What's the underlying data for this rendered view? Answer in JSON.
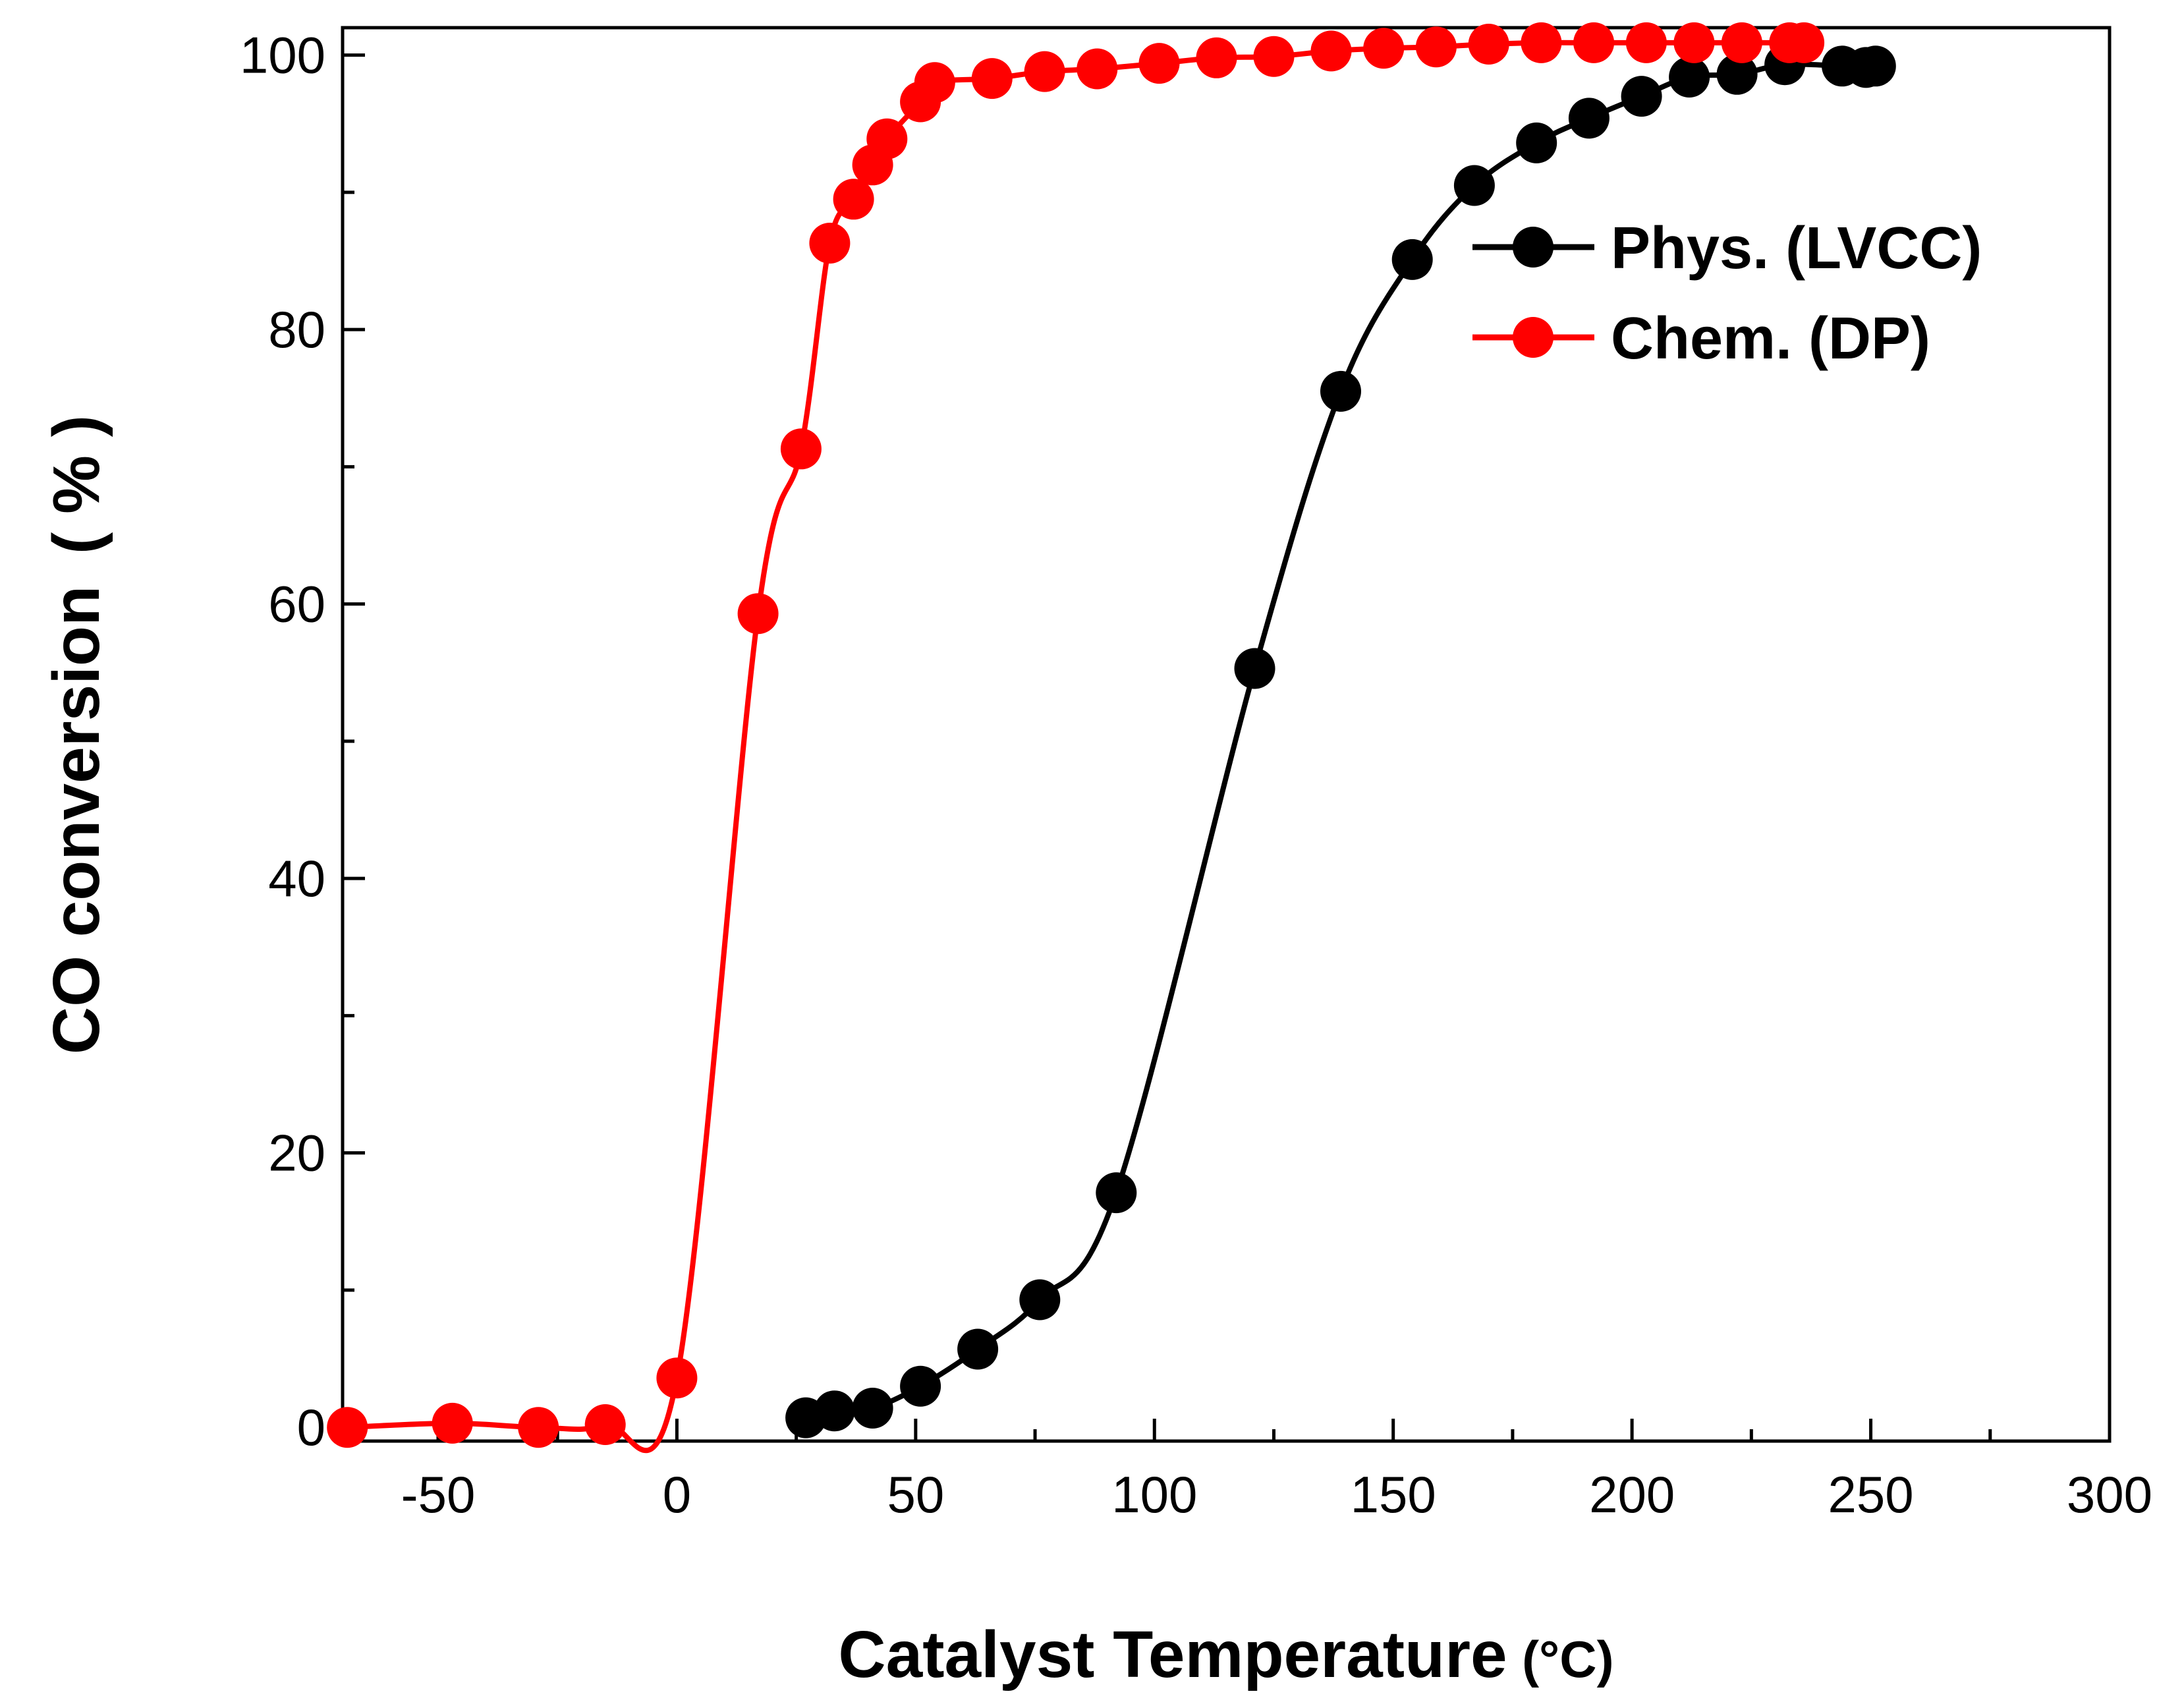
{
  "chart_data": {
    "type": "line",
    "title": "",
    "xlabel": "Catalyst Temperature",
    "xlabel_unit": "°C",
    "ylabel": "CO conversion",
    "ylabel_unit": "%",
    "xlim": [
      -70,
      300
    ],
    "ylim": [
      -1,
      102
    ],
    "xticks": [
      -50,
      0,
      50,
      100,
      150,
      200,
      250,
      300
    ],
    "yticks": [
      0,
      20,
      40,
      60,
      80,
      100
    ],
    "xtick_labels": [
      "-50",
      "0",
      "50",
      "100",
      "150",
      "200",
      "250",
      "300"
    ],
    "ytick_labels": [
      "0",
      "20",
      "40",
      "60",
      "80",
      "100"
    ],
    "grid": false,
    "legend_position": "top-right",
    "series": [
      {
        "name": "Phys. (LVCC)",
        "color": "#000000",
        "marker": "circle",
        "x": [
          27,
          33,
          41,
          51,
          63,
          76,
          92,
          121,
          139,
          154,
          167,
          180,
          191,
          202,
          212,
          222,
          232,
          244,
          249,
          251
        ],
        "y": [
          0.7,
          1.2,
          1.4,
          3.0,
          5.7,
          9.3,
          17.1,
          55.3,
          75.5,
          85.1,
          90.5,
          93.6,
          95.4,
          97.0,
          98.4,
          98.6,
          99.3,
          99.2,
          99.1,
          99.2
        ]
      },
      {
        "name": "Chem. (DP)",
        "color": "#ff0000",
        "marker": "circle",
        "x": [
          -69,
          -47,
          -29,
          -15,
          0,
          17,
          26,
          32,
          37,
          41,
          44,
          51,
          54,
          66,
          77,
          88,
          101,
          113,
          125,
          137,
          148,
          159,
          170,
          181,
          192,
          203,
          213,
          223,
          233,
          236
        ],
        "y": [
          0.0,
          0.3,
          0.0,
          0.2,
          3.6,
          59.3,
          71.3,
          86.3,
          89.5,
          92.0,
          93.9,
          96.6,
          98.0,
          98.3,
          98.8,
          99.0,
          99.4,
          99.8,
          99.9,
          100.3,
          100.5,
          100.6,
          100.8,
          100.9,
          100.9,
          100.9,
          100.9,
          100.9,
          100.9,
          100.9
        ]
      }
    ]
  }
}
